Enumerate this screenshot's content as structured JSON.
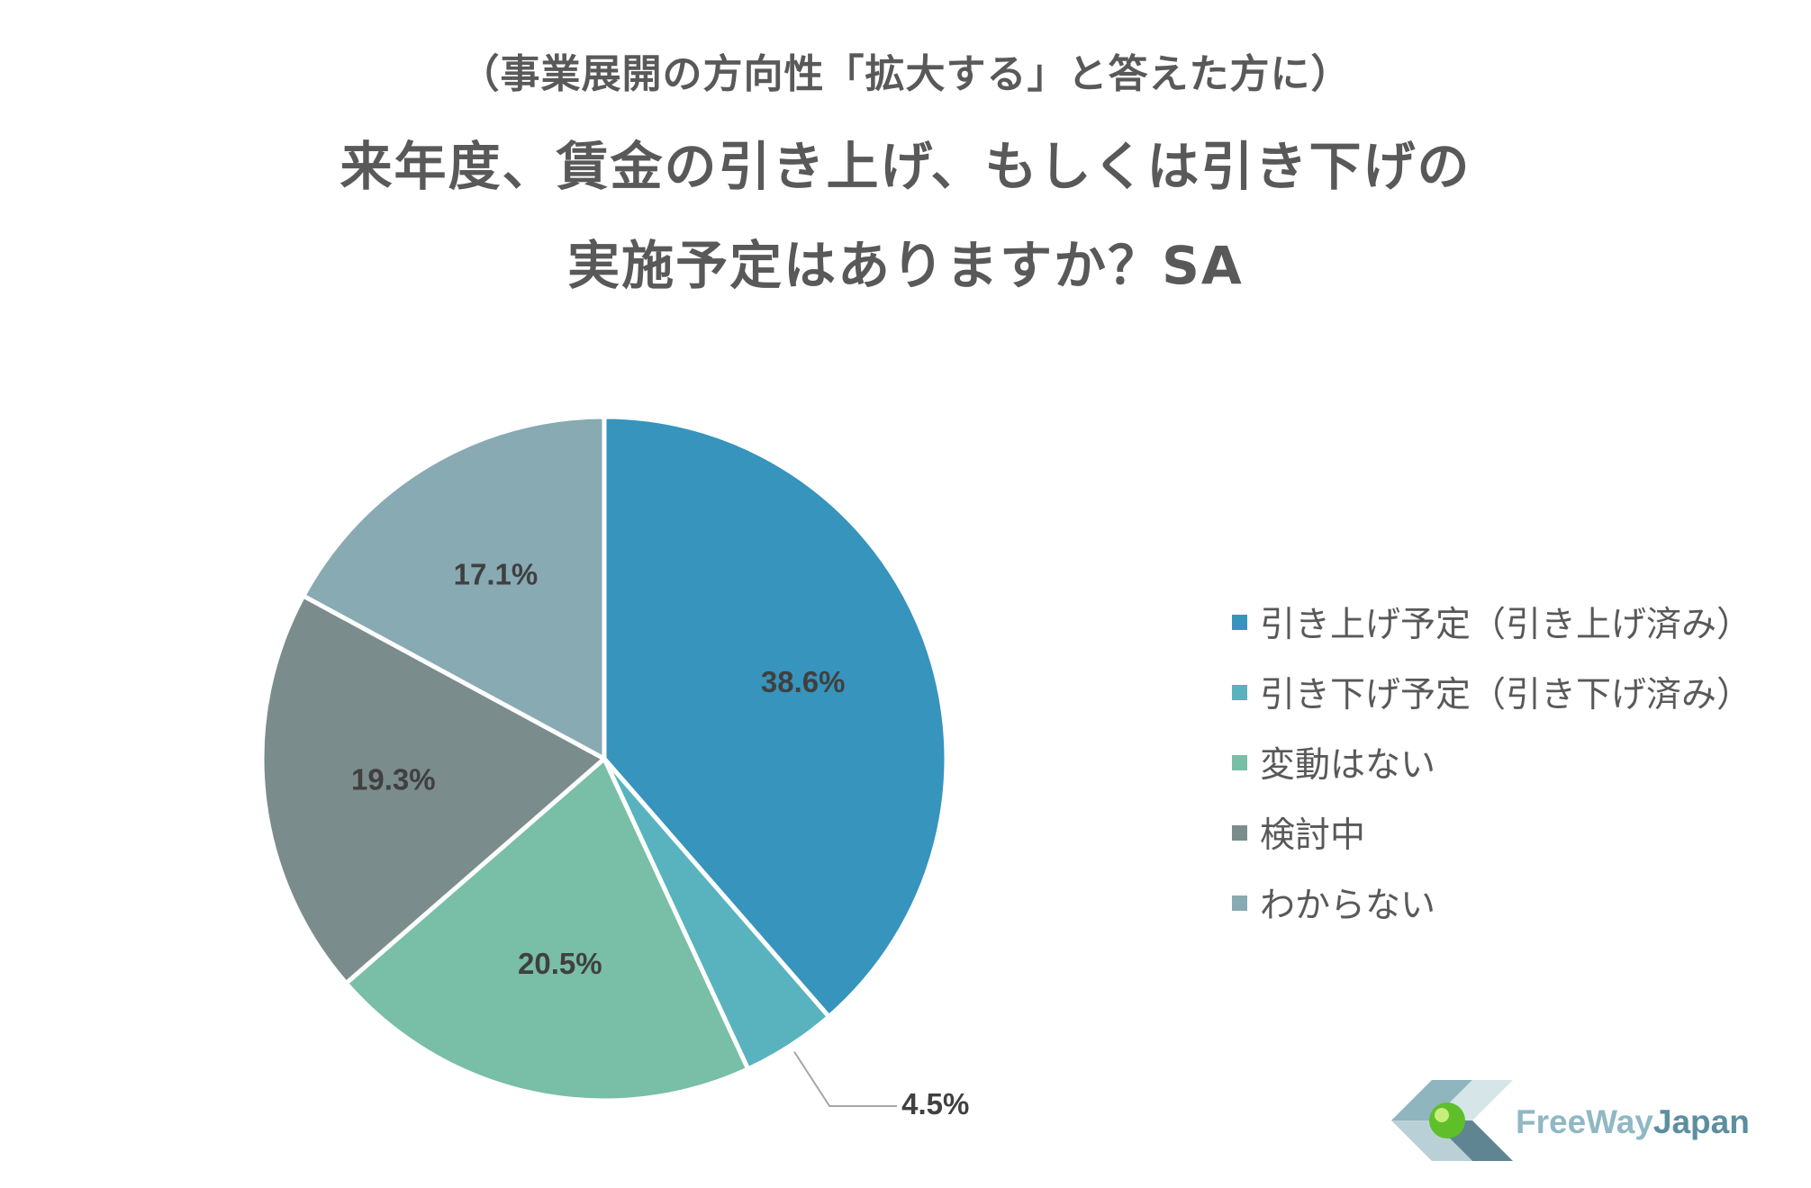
{
  "header": {
    "subtitle": "（事業展開の方向性「拡大する」と答えた方に）",
    "title_line1": "来年度、賃金の引き上げ、もしくは引き下げの",
    "title_line2": "実施予定はありますか？SA"
  },
  "chart_data": {
    "type": "pie",
    "title": "来年度、賃金の引き上げ、もしくは引き下げの実施予定はありますか？SA",
    "subtitle": "（事業展開の方向性「拡大する」と答えた方に）",
    "start_angle": "12 o'clock, clockwise",
    "legend_position": "right",
    "slices": [
      {
        "label": "引き上げ予定（引き上げ済み）",
        "value": 38.6,
        "display": "38.6%",
        "color": "#3794BC"
      },
      {
        "label": "引き下げ予定（引き下げ済み）",
        "value": 4.5,
        "display": "4.5%",
        "color": "#58B3BF"
      },
      {
        "label": "変動はない",
        "value": 20.5,
        "display": "20.5%",
        "color": "#79BEA7"
      },
      {
        "label": "検討中",
        "value": 19.3,
        "display": "19.3%",
        "color": "#7B8C8C"
      },
      {
        "label": "わからない",
        "value": 17.1,
        "display": "17.1%",
        "color": "#87AAB3"
      }
    ]
  },
  "logo": {
    "text_part1": "FreeWay",
    "text_part2": "Japan",
    "color_part1": "#8FB8C3",
    "color_part2": "#5B8FA0"
  }
}
